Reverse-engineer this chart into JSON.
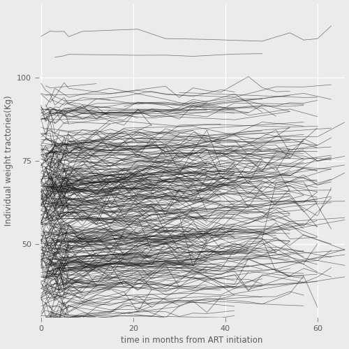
{
  "title": "",
  "xlabel": "time in months from ART initiation",
  "ylabel": "Individual weight tractories(Kg)",
  "xlim": [
    -0.5,
    66
  ],
  "ylim": [
    28,
    122
  ],
  "xticks": [
    0,
    20,
    40,
    60
  ],
  "yticks": [
    50,
    75,
    100
  ],
  "bg_color": "#EBEBEB",
  "grid_color": "white",
  "line_color": "#1A1A1A",
  "line_alpha": 0.6,
  "line_width": 0.5,
  "n_patients": 400,
  "seed": 7,
  "xlabel_color": "#5A5A5A",
  "ylabel_color": "#5A5A5A",
  "tick_color": "#5A5A5A",
  "axis_label_fontsize": 8.5,
  "tick_fontsize": 8
}
